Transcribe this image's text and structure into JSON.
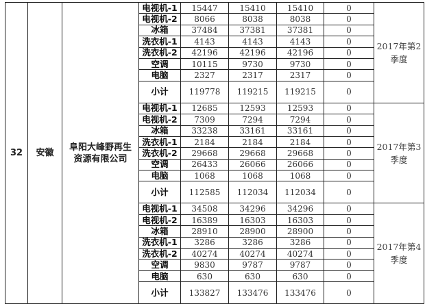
{
  "row": {
    "index": "32",
    "province": "安徽",
    "company": "阜阳大峰野再生资源有限公司"
  },
  "groups": [
    {
      "quarter": "2017年第2季度",
      "items": [
        {
          "name": "电视机-1",
          "a": "15447",
          "b": "15410",
          "c": "15410",
          "d": "0"
        },
        {
          "name": "电视机-2",
          "a": "8066",
          "b": "8038",
          "c": "8038",
          "d": "0"
        },
        {
          "name": "冰箱",
          "a": "37484",
          "b": "37381",
          "c": "37381",
          "d": "0"
        },
        {
          "name": "洗衣机-1",
          "a": "4143",
          "b": "4143",
          "c": "4143",
          "d": "0"
        },
        {
          "name": "洗衣机-2",
          "a": "42196",
          "b": "42196",
          "c": "42196",
          "d": "0"
        },
        {
          "name": "空调",
          "a": "10115",
          "b": "9730",
          "c": "9730",
          "d": "0"
        },
        {
          "name": "电脑",
          "a": "2327",
          "b": "2317",
          "c": "2317",
          "d": "0"
        },
        {
          "name": "小计",
          "a": "119778",
          "b": "119215",
          "c": "119215",
          "d": "0"
        }
      ]
    },
    {
      "quarter": "2017年第3季度",
      "items": [
        {
          "name": "电视机-1",
          "a": "12685",
          "b": "12593",
          "c": "12593",
          "d": "0"
        },
        {
          "name": "电视机-2",
          "a": "7309",
          "b": "7294",
          "c": "7294",
          "d": "0"
        },
        {
          "name": "冰箱",
          "a": "33238",
          "b": "33161",
          "c": "33161",
          "d": "0"
        },
        {
          "name": "洗衣机-1",
          "a": "2184",
          "b": "2184",
          "c": "2184",
          "d": "0"
        },
        {
          "name": "洗衣机-2",
          "a": "29668",
          "b": "29668",
          "c": "29668",
          "d": "0"
        },
        {
          "name": "空调",
          "a": "26433",
          "b": "26066",
          "c": "26066",
          "d": "0"
        },
        {
          "name": "电脑",
          "a": "1068",
          "b": "1068",
          "c": "1068",
          "d": "0"
        },
        {
          "name": "小计",
          "a": "112585",
          "b": "112034",
          "c": "112034",
          "d": "0"
        }
      ]
    },
    {
      "quarter": "2017年第4季度",
      "items": [
        {
          "name": "电视机-1",
          "a": "34508",
          "b": "34296",
          "c": "34296",
          "d": "0"
        },
        {
          "name": "电视机-2",
          "a": "16389",
          "b": "16303",
          "c": "16303",
          "d": "0"
        },
        {
          "name": "冰箱",
          "a": "28910",
          "b": "28900",
          "c": "28900",
          "d": "0"
        },
        {
          "name": "洗衣机-1",
          "a": "3286",
          "b": "3286",
          "c": "3286",
          "d": "0"
        },
        {
          "name": "洗衣机-2",
          "a": "40274",
          "b": "40274",
          "c": "40274",
          "d": "0"
        },
        {
          "name": "空调",
          "a": "9830",
          "b": "9787",
          "c": "9787",
          "d": "0"
        },
        {
          "name": "电脑",
          "a": "630",
          "b": "630",
          "c": "630",
          "d": "0"
        },
        {
          "name": "小计",
          "a": "133827",
          "b": "133476",
          "c": "133476",
          "d": "0"
        }
      ]
    }
  ]
}
